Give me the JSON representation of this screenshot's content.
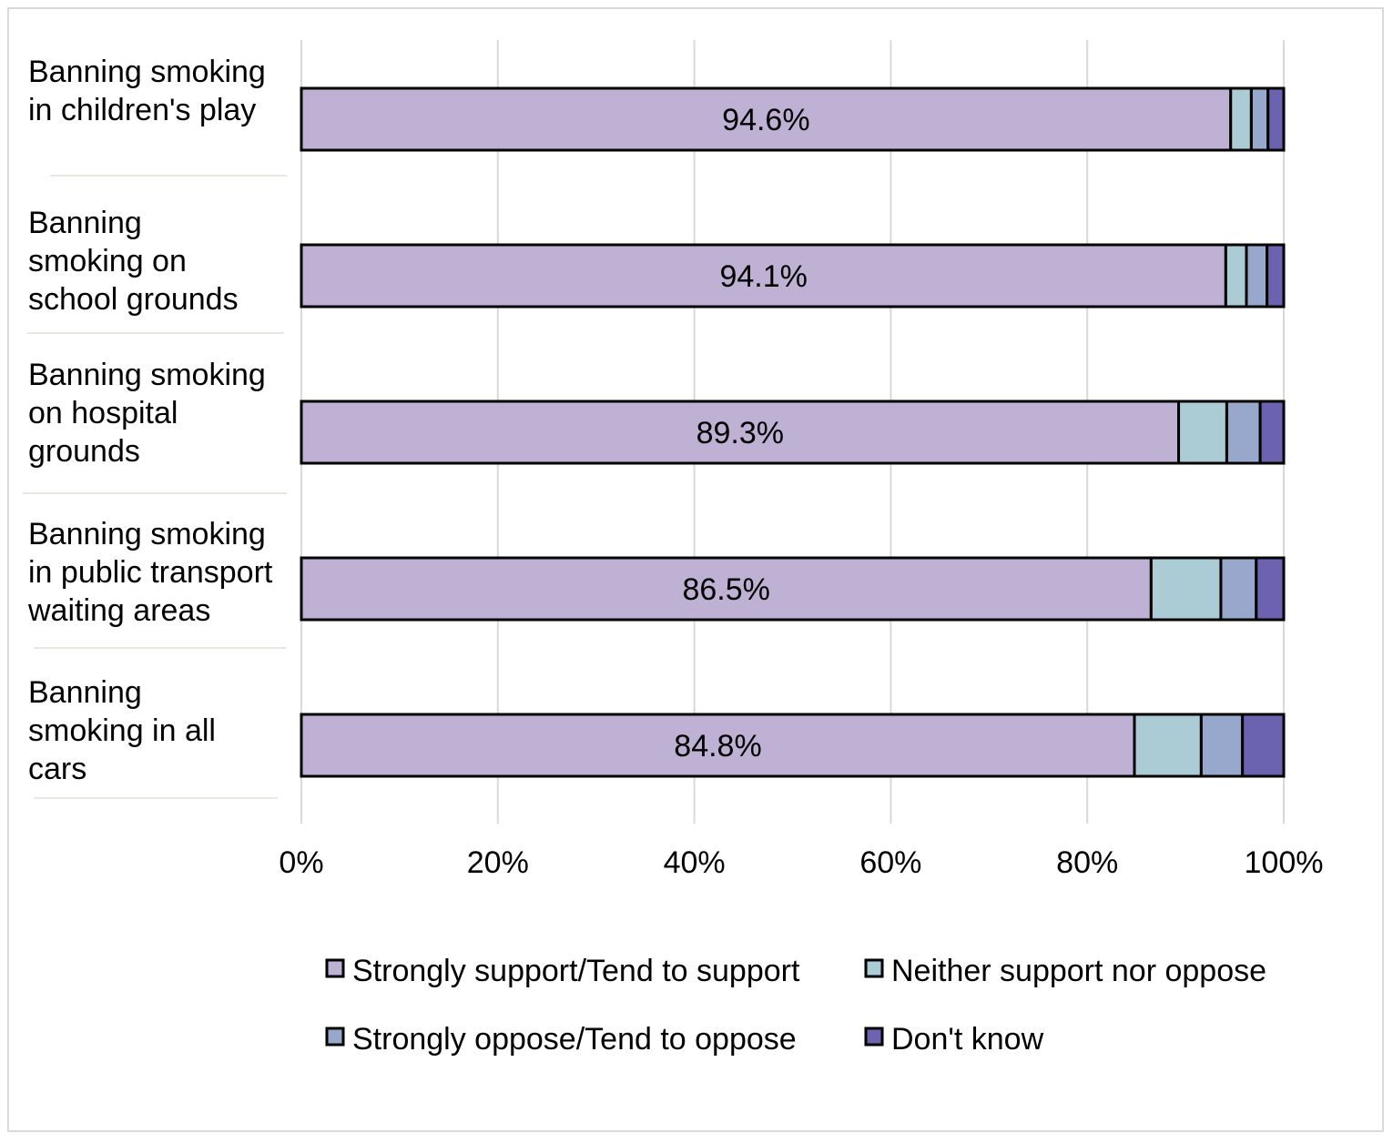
{
  "chart_data": {
    "type": "bar",
    "orientation": "horizontal",
    "stacked": "percent",
    "categories": [
      [
        "Banning smoking",
        "in children's play"
      ],
      [
        "Banning",
        "smoking on",
        "school grounds"
      ],
      [
        "Banning smoking",
        "on hospital",
        "grounds"
      ],
      [
        "Banning smoking",
        "in public transport",
        "waiting areas"
      ],
      [
        "Banning",
        "smoking in all",
        "cars"
      ]
    ],
    "series": [
      {
        "name": "Strongly support/Tend to support",
        "color": "#bfb1d4",
        "values": [
          94.6,
          94.1,
          89.3,
          86.5,
          84.8
        ],
        "labels": [
          "94.6%",
          "94.1%",
          "89.3%",
          "86.5%",
          "84.8%"
        ]
      },
      {
        "name": "Neither support nor oppose",
        "color": "#abcbd5",
        "values": [
          2.1,
          2.1,
          4.9,
          7.1,
          6.8
        ]
      },
      {
        "name": "Strongly oppose/Tend to oppose",
        "color": "#98a8cc",
        "values": [
          1.7,
          2.1,
          3.4,
          3.6,
          4.2
        ]
      },
      {
        "name": "Don't know",
        "color": "#6b63b0",
        "values": [
          1.6,
          1.7,
          2.4,
          2.8,
          4.2
        ]
      }
    ],
    "xlim": [
      0,
      100
    ],
    "x_ticks": [
      "0%",
      "20%",
      "40%",
      "60%",
      "80%",
      "100%"
    ],
    "grid": "vertical",
    "legend_position": "bottom"
  }
}
